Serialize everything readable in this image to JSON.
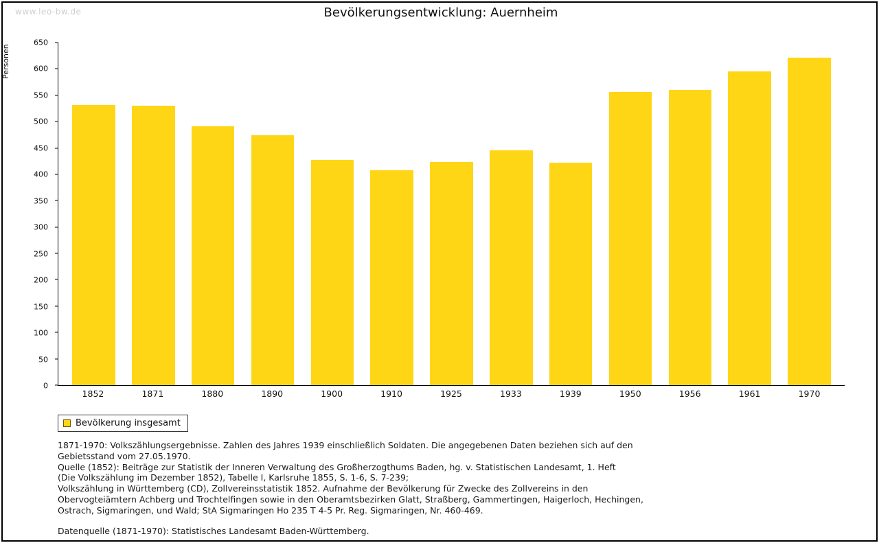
{
  "watermark": "www.leo-bw.de",
  "title": "Bevölkerungsentwicklung: Auernheim",
  "chart_data": {
    "type": "bar",
    "title": "Bevölkerungsentwicklung: Auernheim",
    "xlabel": "",
    "ylabel": "Personen",
    "ylim": [
      0,
      650
    ],
    "ytick_step": 50,
    "grid": false,
    "bar_color": "#FFD616",
    "legend_position": "bottom-left",
    "categories": [
      "1852",
      "1871",
      "1880",
      "1890",
      "1900",
      "1910",
      "1925",
      "1933",
      "1939",
      "1950",
      "1956",
      "1961",
      "1970"
    ],
    "series": [
      {
        "name": "Bevölkerung insgesamt",
        "values": [
          532,
          530,
          491,
          474,
          427,
          408,
          424,
          446,
          422,
          556,
          560,
          595,
          622
        ]
      }
    ]
  },
  "legend": {
    "label": "Bevölkerung insgesamt",
    "swatch_color": "#FFD616"
  },
  "notes": {
    "lines": [
      "1871-1970: Volkszählungsergebnisse. Zahlen des Jahres 1939 einschließlich Soldaten. Die angegebenen Daten beziehen sich auf den",
      "Gebietsstand vom 27.05.1970.",
      "Quelle (1852): Beiträge zur Statistik der Inneren Verwaltung des Großherzogthums Baden, hg. v. Statistischen Landesamt, 1. Heft",
      "(Die Volkszählung im Dezember 1852), Tabelle I, Karlsruhe 1855, S. 1-6, S. 7-239;",
      "Volkszählung in Württemberg (CD), Zollvereinsstatistik 1852. Aufnahme der Bevölkerung für Zwecke des Zollvereins in den",
      "Obervogteiämtern Achberg und Trochtelfingen sowie in den Oberamtsbezirken Glatt, Straßberg, Gammertingen, Haigerloch, Hechingen,",
      "Ostrach, Sigmaringen, und Wald; StA Sigmaringen Ho 235 T 4-5 Pr. Reg. Sigmaringen, Nr. 460-469.",
      "",
      "Datenquelle (1871-1970): Statistisches Landesamt Baden-Württemberg."
    ]
  }
}
